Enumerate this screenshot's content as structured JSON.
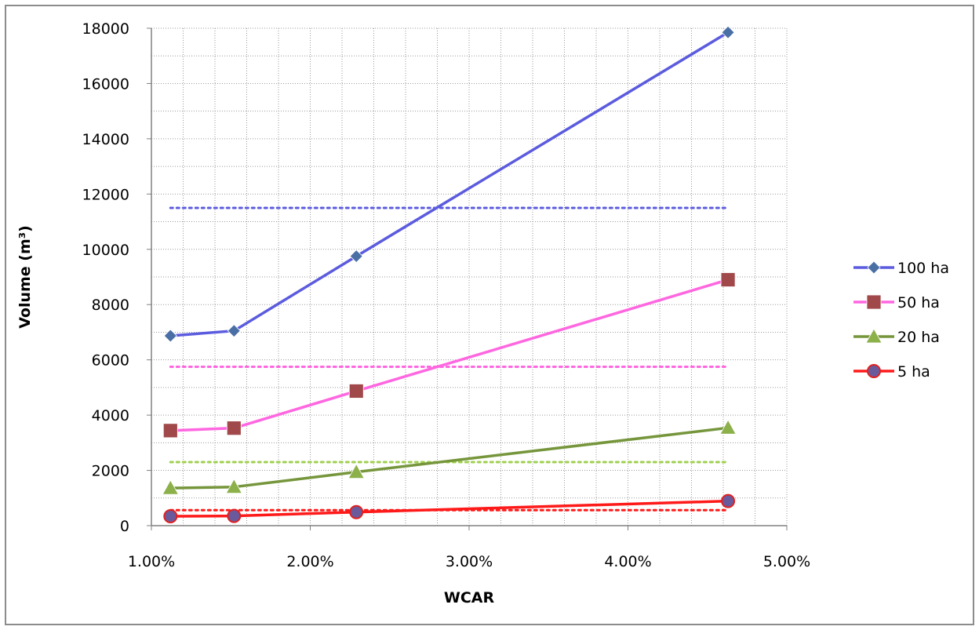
{
  "chart_data": {
    "type": "line",
    "title": "",
    "xlabel": "WCAR",
    "ylabel": "Volume (m³)",
    "xlim": [
      0.01,
      0.05
    ],
    "ylim": [
      0,
      18000
    ],
    "x_ticks": [
      "1.00%",
      "2.00%",
      "3.00%",
      "4.00%",
      "5.00%"
    ],
    "y_ticks": [
      "0",
      "2000",
      "4000",
      "6000",
      "8000",
      "10000",
      "12000",
      "14000",
      "16000",
      "18000"
    ],
    "grid": true,
    "legend_position": "right",
    "x": [
      0.0112,
      0.0152,
      0.0229,
      0.0463
    ],
    "series": [
      {
        "name": "100 ha",
        "color": "#5b5bdf",
        "marker_color": "#4a6fa5",
        "marker": "diamond",
        "values": [
          6870,
          7050,
          9750,
          17850
        ]
      },
      {
        "name": "50 ha",
        "color": "#ff66e0",
        "marker_color": "#a0484a",
        "marker": "square",
        "values": [
          3440,
          3530,
          4870,
          8900
        ]
      },
      {
        "name": "20 ha",
        "color": "#76963c",
        "marker_color": "#8cb04a",
        "marker": "triangle",
        "values": [
          1360,
          1400,
          1940,
          3540
        ]
      },
      {
        "name": "5 ha",
        "color": "#ff1a1a",
        "marker_color": "#6a5a9c",
        "marker": "circle",
        "values": [
          340,
          350,
          490,
          890
        ]
      }
    ],
    "reference_lines": [
      {
        "y": 11500,
        "color": "#5b5bdf",
        "x_range": [
          0.0112,
          0.0463
        ]
      },
      {
        "y": 5750,
        "color": "#ff66e0",
        "x_range": [
          0.0112,
          0.0463
        ]
      },
      {
        "y": 2300,
        "color": "#a0d050",
        "x_range": [
          0.0112,
          0.0463
        ]
      },
      {
        "y": 560,
        "color": "#ff1a1a",
        "x_range": [
          0.0112,
          0.0463
        ]
      }
    ]
  }
}
